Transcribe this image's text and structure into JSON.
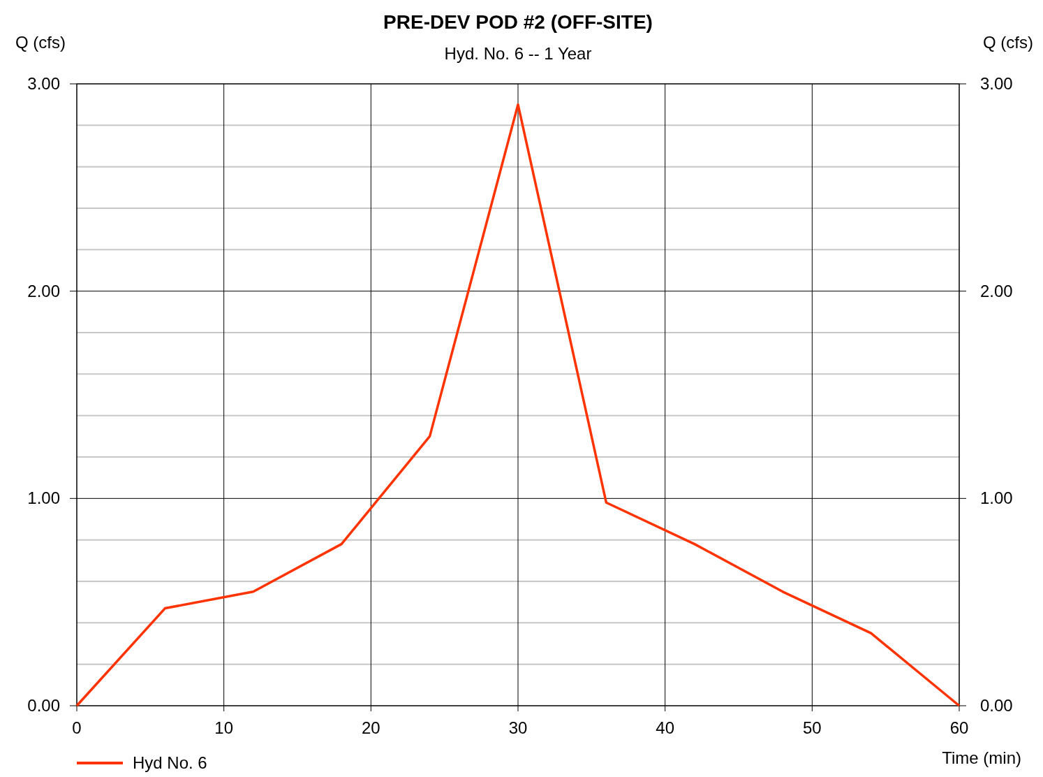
{
  "chart_data": {
    "type": "line",
    "title": "PRE-DEV POD #2 (OFF-SITE)",
    "subtitle": "Hyd. No. 6 -- 1 Year",
    "xlabel": "Time (min)",
    "ylabel": "Q (cfs)",
    "y2label": "Q (cfs)",
    "x": [
      0,
      6,
      12,
      18,
      24,
      30,
      36,
      42,
      48,
      54,
      60
    ],
    "series": [
      {
        "name": "Hyd No. 6",
        "color": "#ff3300",
        "values": [
          0,
          0.47,
          0.55,
          0.78,
          1.3,
          2.9,
          0.98,
          0.78,
          0.55,
          0.35,
          0
        ]
      }
    ],
    "xlim": [
      0,
      60
    ],
    "xticks": [
      0,
      10,
      20,
      30,
      40,
      50,
      60
    ],
    "ylim": [
      0,
      3
    ],
    "yticks": [
      {
        "value": 0,
        "label": "0.00"
      },
      {
        "value": 0.2,
        "label": null
      },
      {
        "value": 0.4,
        "label": null
      },
      {
        "value": 0.6,
        "label": null
      },
      {
        "value": 0.8,
        "label": null
      },
      {
        "value": 1,
        "label": "1.00"
      },
      {
        "value": 1.2,
        "label": null
      },
      {
        "value": 1.4,
        "label": null
      },
      {
        "value": 1.6,
        "label": null
      },
      {
        "value": 1.8,
        "label": null
      },
      {
        "value": 2,
        "label": "2.00"
      },
      {
        "value": 2.2,
        "label": null
      },
      {
        "value": 2.4,
        "label": null
      },
      {
        "value": 2.6,
        "label": null
      },
      {
        "value": 2.8,
        "label": null
      },
      {
        "value": 3,
        "label": "3.00"
      }
    ],
    "y2lim": [
      0,
      3
    ],
    "y2ticks": [
      {
        "value": 0,
        "label": "0.00"
      },
      {
        "value": 1,
        "label": "1.00"
      },
      {
        "value": 2,
        "label": "2.00"
      },
      {
        "value": 3,
        "label": "3.00"
      }
    ],
    "grid": true,
    "legend": "bottom left",
    "marker": "none",
    "line_style": "solid"
  }
}
